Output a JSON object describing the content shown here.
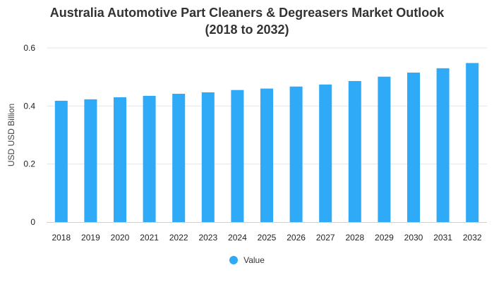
{
  "chart_data": {
    "type": "bar",
    "title": "Australia Automotive Part Cleaners & Degreasers Market Outlook",
    "subtitle": "(2018 to 2032)",
    "xlabel": "",
    "ylabel": "USD USD Billion",
    "ylim": [
      0,
      0.6
    ],
    "yticks": [
      "0",
      "0.2",
      "0.4",
      "0.6"
    ],
    "grid": true,
    "legend_position": "bottom",
    "categories": [
      "2018",
      "2019",
      "2020",
      "2021",
      "2022",
      "2023",
      "2024",
      "2025",
      "2026",
      "2027",
      "2028",
      "2029",
      "2030",
      "2031",
      "2032"
    ],
    "series": [
      {
        "name": "Value",
        "color": "#2eaaf7",
        "values": [
          0.418,
          0.423,
          0.43,
          0.435,
          0.442,
          0.447,
          0.455,
          0.46,
          0.467,
          0.474,
          0.486,
          0.501,
          0.515,
          0.53,
          0.548
        ]
      }
    ]
  }
}
